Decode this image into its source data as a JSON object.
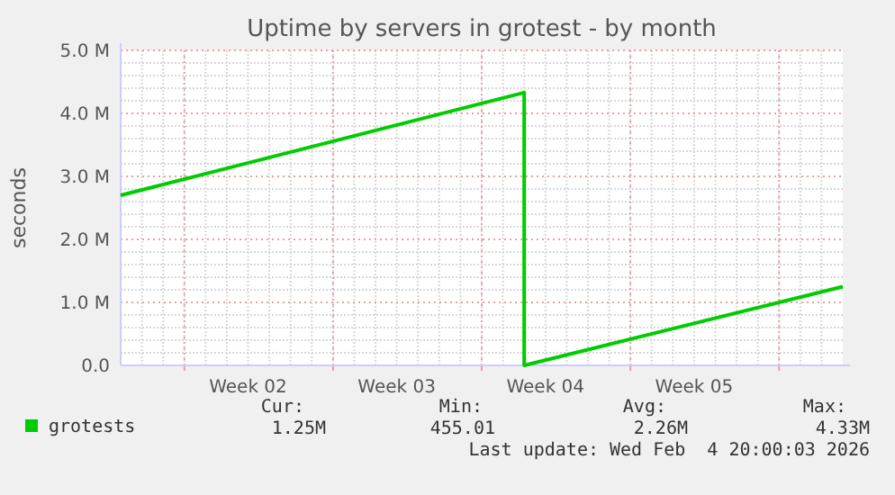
{
  "chart_data": {
    "type": "line",
    "title": "Uptime by servers in grotest - by month",
    "ylabel": "seconds",
    "x": [
      "2026-01-02",
      "2026-01-21",
      "2026-01-21",
      "2026-02-05"
    ],
    "series": [
      {
        "name": "grotests",
        "color": "#00cc00",
        "values": [
          2700000,
          4330000,
          0,
          1250000
        ]
      }
    ],
    "xlim": [
      "2026-01-02",
      "2026-02-05"
    ],
    "xticks": [
      {
        "value": "2026-01-05",
        "label": null
      },
      {
        "value": "2026-01-08",
        "label": "Week 02"
      },
      {
        "value": "2026-01-12",
        "label": null
      },
      {
        "value": "2026-01-15",
        "label": "Week 03"
      },
      {
        "value": "2026-01-19",
        "label": null
      },
      {
        "value": "2026-01-22",
        "label": "Week 04"
      },
      {
        "value": "2026-01-26",
        "label": null
      },
      {
        "value": "2026-01-29",
        "label": "Week 05"
      },
      {
        "value": "2026-02-02",
        "label": null
      }
    ],
    "ylim": [
      0,
      5000000
    ],
    "yticks": [
      {
        "value": 0,
        "label": "0.0"
      },
      {
        "value": 1000000,
        "label": "1.0 M"
      },
      {
        "value": 2000000,
        "label": "2.0 M"
      },
      {
        "value": 3000000,
        "label": "3.0 M"
      },
      {
        "value": 4000000,
        "label": "4.0 M"
      },
      {
        "value": 5000000,
        "label": "5.0 M"
      }
    ],
    "grid": true,
    "legend": "bottom",
    "marker": "none",
    "line_style": "solid",
    "annotations": [
      "Cur:",
      "Min:",
      "Avg:",
      "Max:",
      "1.25M",
      "455.01",
      "2.26M",
      "4.33M",
      "Last update: Wed Feb  4 20:00:03 2026"
    ]
  }
}
